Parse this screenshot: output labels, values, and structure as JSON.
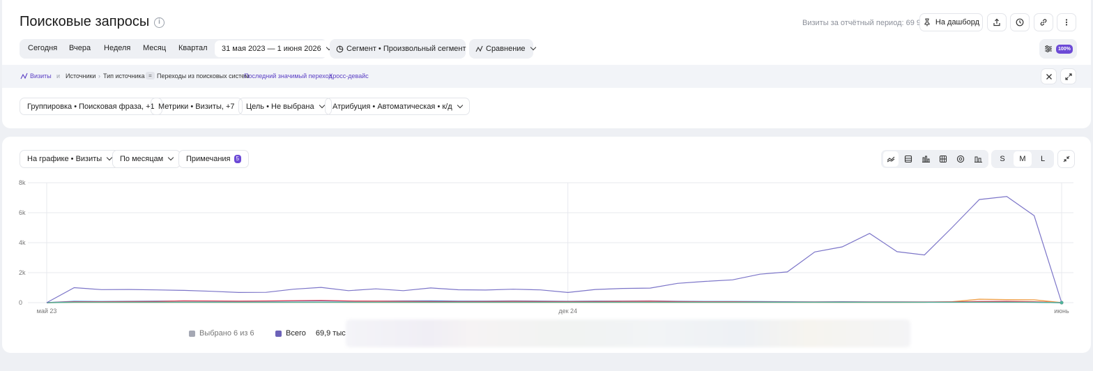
{
  "header": {
    "title": "Поисковые запросы",
    "visits_label": "Визиты за отчётный период: 69 991",
    "dashboard_button": "На дашборд"
  },
  "period_tabs": [
    "Сегодня",
    "Вчера",
    "Неделя",
    "Месяц",
    "Квартал"
  ],
  "date_range": "31 мая 2023 — 1 июня 2026",
  "segment": "Сегмент • Произвольный сегмент",
  "compare": "Сравнение",
  "sampling": "100%",
  "breadcrumbs": {
    "metric": "Визиты",
    "and": "и",
    "sources": "Источники",
    "source_type": "Тип источника",
    "eq": "=",
    "source_value": "Переходы из поисковых систем",
    "attribution": "Последний значимый переход",
    "cross_device": "Кросс-девайс"
  },
  "filters": [
    "Группировка • Поисковая фраза, +1",
    "Метрики • Визиты, +7",
    "Цель • Не выбрана",
    "Атрибуция • Автоматическая • к/д"
  ],
  "chart_controls": {
    "on_chart": "На графике • Визиты",
    "by_period": "По месяцам",
    "notes": "Примечания",
    "notes_count": "5",
    "sizes": [
      "S",
      "M",
      "L"
    ],
    "active_size": "M"
  },
  "legend": {
    "selected": "Выбрано 6 из 6",
    "total_label": "Всего",
    "total_value": "69,9 тыс"
  },
  "colors": {
    "accent": "#6c4ad6",
    "main_line": "#7b74c8",
    "orange_line": "#f0a04b",
    "blue_line": "#3a8ee6",
    "red_line": "#e0445c",
    "green_line": "#4fb39a"
  },
  "chart_data": {
    "type": "line",
    "x_tick_labels": [
      "май 23",
      "дек 24",
      "июнь"
    ],
    "y_tick_labels": [
      "0",
      "2k",
      "4k",
      "6k",
      "8k"
    ],
    "ylim": [
      0,
      8000
    ],
    "grid": true,
    "series": [
      {
        "color": "#7b74c8",
        "values": [
          0,
          1000,
          870,
          880,
          850,
          820,
          760,
          680,
          690,
          900,
          1020,
          800,
          920,
          800,
          980,
          860,
          840,
          900,
          850,
          680,
          880,
          950,
          970,
          1290,
          1420,
          1520,
          1900,
          2050,
          3380,
          3720,
          4620,
          3400,
          3180,
          5000,
          6880,
          7080,
          5800,
          0
        ]
      },
      {
        "color": "#f0a04b",
        "values": [
          0,
          20,
          20,
          20,
          20,
          20,
          20,
          20,
          20,
          20,
          20,
          20,
          20,
          20,
          20,
          20,
          20,
          20,
          20,
          20,
          20,
          20,
          20,
          20,
          20,
          20,
          20,
          20,
          20,
          20,
          20,
          20,
          30,
          60,
          230,
          200,
          190,
          0
        ]
      },
      {
        "color": "#3a8ee6",
        "values": [
          0,
          90,
          80,
          90,
          100,
          110,
          100,
          90,
          100,
          110,
          120,
          100,
          100,
          110,
          120,
          100,
          100,
          110,
          100,
          90,
          100,
          100,
          110,
          90,
          80,
          80,
          70,
          60,
          50,
          60,
          50,
          50,
          40,
          40,
          40,
          40,
          30,
          0
        ]
      },
      {
        "color": "#e0445c",
        "values": [
          0,
          60,
          60,
          70,
          80,
          120,
          110,
          100,
          110,
          130,
          150,
          110,
          100,
          90,
          80,
          70,
          80,
          90,
          80,
          70,
          80,
          90,
          100,
          70,
          60,
          60,
          50,
          40,
          40,
          40,
          40,
          40,
          40,
          50,
          80,
          90,
          60,
          0
        ]
      },
      {
        "color": "#4fb39a",
        "values": [
          0,
          30,
          30,
          30,
          30,
          30,
          30,
          30,
          30,
          30,
          30,
          30,
          30,
          30,
          30,
          30,
          30,
          30,
          30,
          30,
          30,
          30,
          30,
          30,
          30,
          30,
          30,
          30,
          30,
          30,
          30,
          30,
          30,
          30,
          30,
          30,
          30,
          0
        ]
      }
    ]
  }
}
